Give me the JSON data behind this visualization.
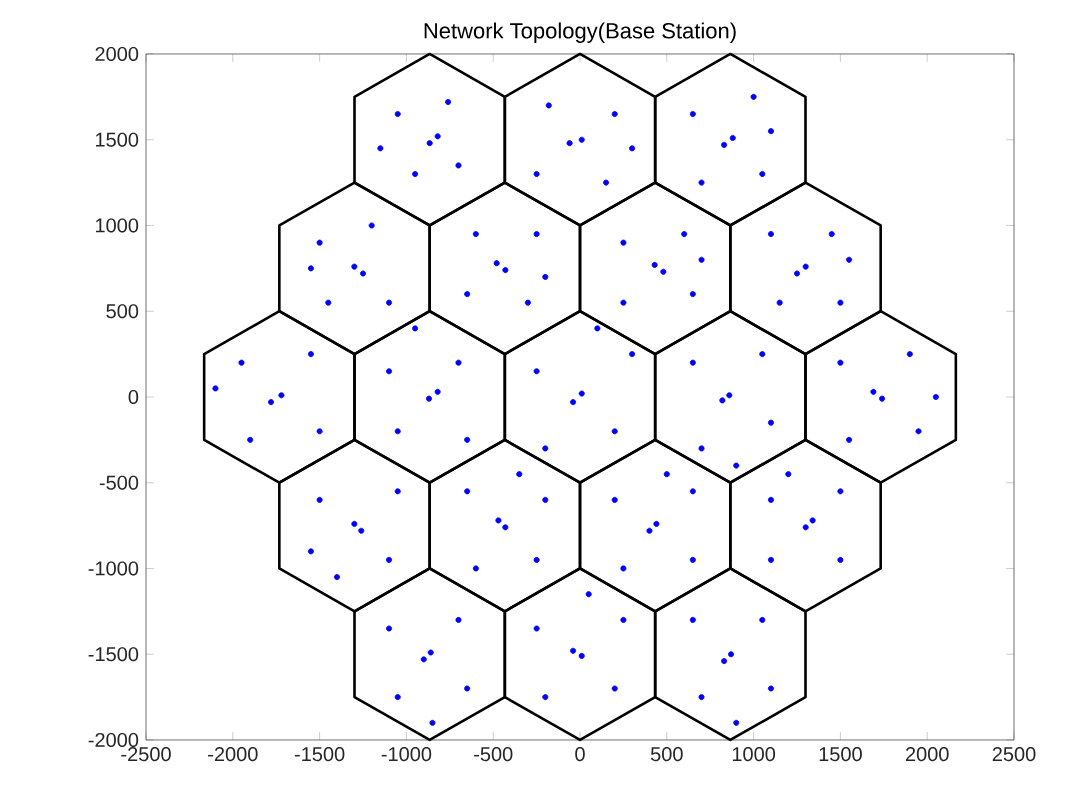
{
  "chart_data": {
    "type": "scatter",
    "title": "Network Topology(Base Station)",
    "xlim": [
      -2500,
      2500
    ],
    "ylim": [
      -2000,
      2000
    ],
    "xticks": [
      -2500,
      -2000,
      -1500,
      -1000,
      -500,
      0,
      500,
      1000,
      1500,
      2000,
      2500
    ],
    "yticks": [
      -2000,
      -1500,
      -1000,
      -500,
      0,
      500,
      1000,
      1500,
      2000
    ],
    "grid": false,
    "series": [
      {
        "color": "#0000ff",
        "x": [
          -866,
          -820,
          -1050,
          -700,
          -950,
          -760,
          -1150,
          10,
          -60,
          200,
          -250,
          150,
          -180,
          300,
          880,
          830,
          650,
          1050,
          700,
          1000,
          1100,
          -1300,
          -1250,
          -1500,
          -1100,
          -1450,
          -1200,
          -1550,
          -430,
          -480,
          -650,
          -250,
          -300,
          -600,
          -200,
          430,
          480,
          250,
          650,
          600,
          250,
          700,
          1300,
          1250,
          1100,
          1500,
          1450,
          1150,
          1550,
          -1720,
          -1780,
          -1950,
          -1500,
          -1550,
          -1900,
          -2100,
          -870,
          -820,
          -1100,
          -650,
          -700,
          -1050,
          -950,
          10,
          -40,
          -250,
          200,
          300,
          -200,
          100,
          860,
          820,
          650,
          1100,
          1050,
          700,
          900,
          1740,
          1690,
          1500,
          1950,
          1900,
          1550,
          2050,
          -1300,
          -1260,
          -1500,
          -1100,
          -1050,
          -1550,
          -1400,
          -430,
          -470,
          -650,
          -250,
          -200,
          -600,
          -350,
          440,
          400,
          200,
          650,
          650,
          250,
          500,
          1300,
          1340,
          1100,
          1500,
          1500,
          1100,
          1200,
          -860,
          -900,
          -1100,
          -650,
          -700,
          -1050,
          -850,
          10,
          -40,
          -250,
          200,
          250,
          -200,
          50,
          870,
          830,
          650,
          1100,
          1050,
          700,
          900
        ],
        "values": [
          1480,
          1520,
          1650,
          1350,
          1300,
          1720,
          1450,
          1500,
          1480,
          1650,
          1300,
          1250,
          1700,
          1450,
          1510,
          1470,
          1650,
          1300,
          1250,
          1750,
          1550,
          760,
          720,
          900,
          550,
          550,
          1000,
          750,
          740,
          780,
          600,
          950,
          550,
          950,
          700,
          770,
          730,
          900,
          600,
          950,
          550,
          800,
          760,
          720,
          950,
          550,
          950,
          550,
          800,
          10,
          -30,
          200,
          -200,
          250,
          -250,
          50,
          -10,
          30,
          150,
          -250,
          200,
          -200,
          400,
          20,
          -30,
          150,
          -200,
          250,
          -300,
          400,
          10,
          -20,
          200,
          -150,
          250,
          -300,
          -400,
          -10,
          30,
          200,
          -200,
          250,
          -250,
          0,
          -740,
          -780,
          -600,
          -950,
          -550,
          -900,
          -1050,
          -760,
          -720,
          -550,
          -950,
          -600,
          -1000,
          -450,
          -740,
          -780,
          -600,
          -950,
          -550,
          -1000,
          -450,
          -760,
          -720,
          -600,
          -950,
          -550,
          -950,
          -450,
          -1490,
          -1530,
          -1350,
          -1700,
          -1300,
          -1750,
          -1900,
          -1510,
          -1480,
          -1350,
          -1700,
          -1300,
          -1750,
          -1150,
          -1500,
          -1540,
          -1300,
          -1700,
          -1300,
          -1750,
          -1900
        ]
      }
    ]
  }
}
